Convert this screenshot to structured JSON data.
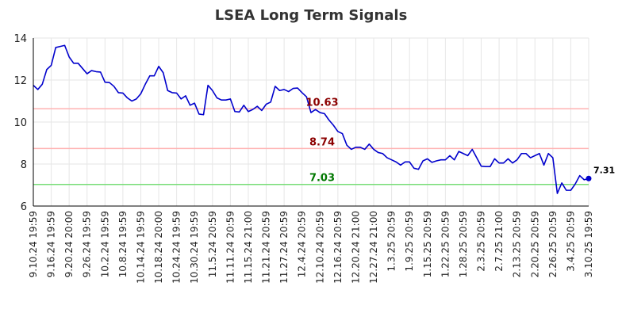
{
  "chart_data": {
    "type": "line",
    "title": "LSEA Long Term Signals",
    "xlabel": "",
    "ylabel": "",
    "ylim": [
      6,
      14
    ],
    "yticks": [
      "6",
      "8",
      "10",
      "12",
      "14"
    ],
    "grid": true,
    "x_tick_labels": [
      "9.10.24 19:59",
      "9.16.24 19:59",
      "9.20.24 20:00",
      "9.26.24 19:59",
      "10.2.24 19:59",
      "10.8.24 19:59",
      "10.14.24 19:59",
      "10.18.24 20:00",
      "10.24.24 19:59",
      "10.30.24 19:59",
      "11.5.24 20:59",
      "11.11.24 20:59",
      "11.15.24 21:00",
      "11.21.24 20:59",
      "11.27.24 20:59",
      "12.4.24 20:59",
      "12.10.24 20:59",
      "12.16.24 20:59",
      "12.20.24 21:00",
      "12.27.24 21:00",
      "1.3.25 20:59",
      "1.9.25 20:59",
      "1.15.25 20:59",
      "1.22.25 20:59",
      "1.28.25 20:59",
      "2.3.25 20:59",
      "2.7.25 21:00",
      "2.13.25 20:59",
      "2.20.25 20:59",
      "2.26.25 20:59",
      "3.4.25 20:59",
      "3.10.25 19:59"
    ],
    "series": [
      {
        "color": "#0000cc",
        "values": [
          11.75,
          11.55,
          11.8,
          12.5,
          12.7,
          13.55,
          13.6,
          13.65,
          13.1,
          12.8,
          12.8,
          12.55,
          12.3,
          12.45,
          12.4,
          12.38,
          11.9,
          11.88,
          11.7,
          11.4,
          11.38,
          11.15,
          11.0,
          11.1,
          11.35,
          11.8,
          12.2,
          12.2,
          12.65,
          12.35,
          11.5,
          11.4,
          11.38,
          11.1,
          11.25,
          10.8,
          10.9,
          10.38,
          10.35,
          11.75,
          11.5,
          11.15,
          11.05,
          11.05,
          11.1,
          10.5,
          10.48,
          10.8,
          10.5,
          10.6,
          10.75,
          10.55,
          10.85,
          10.95,
          11.7,
          11.5,
          11.55,
          11.45,
          11.6,
          11.62,
          11.4,
          11.2,
          10.45,
          10.6,
          10.45,
          10.4,
          10.1,
          9.85,
          9.55,
          9.45,
          8.9,
          8.7,
          8.8,
          8.8,
          8.7,
          8.95,
          8.7,
          8.55,
          8.5,
          8.3,
          8.2,
          8.1,
          7.95,
          8.1,
          8.1,
          7.8,
          7.75,
          8.15,
          8.25,
          8.08,
          8.15,
          8.2,
          8.2,
          8.4,
          8.2,
          8.6,
          8.5,
          8.4,
          8.7,
          8.3,
          7.9,
          7.88,
          7.88,
          8.25,
          8.05,
          8.05,
          8.25,
          8.05,
          8.2,
          8.5,
          8.5,
          8.3,
          8.4,
          8.5,
          7.95,
          8.5,
          8.3,
          6.6,
          7.1,
          6.75,
          6.75,
          7.05,
          7.45,
          7.25,
          7.31
        ]
      }
    ],
    "hlines": [
      {
        "value": 10.63,
        "label": "10.63",
        "line_color": "#ffb3b3",
        "label_color": "#8b0000"
      },
      {
        "value": 8.74,
        "label": "8.74",
        "line_color": "#ffb3b3",
        "label_color": "#8b0000"
      },
      {
        "value": 7.03,
        "label": "7.03",
        "line_color": "#77dd77",
        "label_color": "#007700"
      }
    ],
    "last_value": {
      "value": 7.31,
      "label": "7.31"
    }
  }
}
